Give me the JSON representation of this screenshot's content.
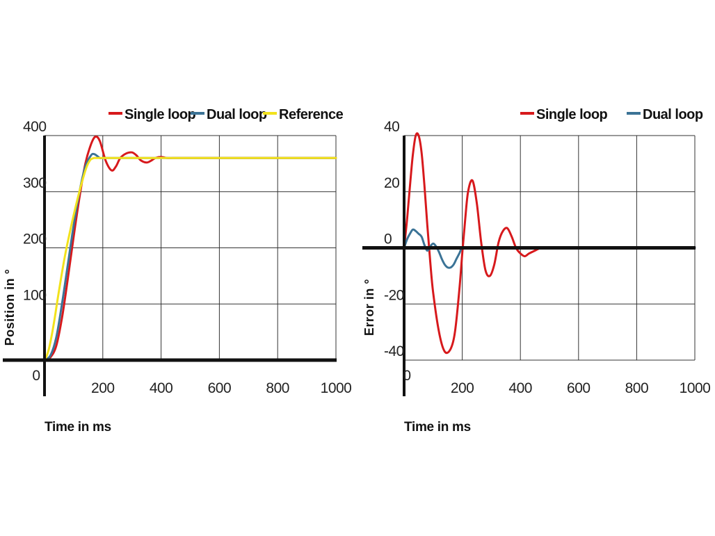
{
  "colors": {
    "single_loop": "#d7191c",
    "dual_loop": "#3b7396",
    "reference": "#f2e21c",
    "grid": "#333333",
    "axis": "#111111"
  },
  "chart_data": [
    {
      "type": "line",
      "title": "",
      "xlabel": "Time in ms",
      "ylabel": "Position in °",
      "xlim": [
        0,
        1000
      ],
      "ylim": [
        0,
        400
      ],
      "xticks": [
        200,
        400,
        600,
        800,
        1000
      ],
      "yticks": [
        100,
        200,
        300,
        400
      ],
      "origin_label": "0",
      "grid": true,
      "legend": "top-right",
      "series": [
        {
          "name": "Single loop",
          "color": "#d7191c",
          "x": [
            0,
            20,
            40,
            60,
            80,
            100,
            120,
            140,
            160,
            175,
            190,
            210,
            230,
            245,
            260,
            280,
            300,
            315,
            330,
            350,
            365,
            380,
            400,
            420,
            440,
            470,
            500,
            600,
            800,
            1000
          ],
          "y": [
            0,
            5,
            25,
            75,
            145,
            220,
            290,
            350,
            385,
            398,
            390,
            355,
            338,
            345,
            360,
            368,
            370,
            365,
            356,
            352,
            355,
            360,
            362,
            360,
            360,
            360,
            360,
            360,
            360,
            360
          ]
        },
        {
          "name": "Dual loop",
          "color": "#3b7396",
          "x": [
            0,
            20,
            40,
            60,
            80,
            100,
            120,
            140,
            160,
            170,
            180,
            190,
            200,
            220,
            250,
            300,
            400,
            600,
            800,
            1000
          ],
          "y": [
            0,
            8,
            40,
            100,
            170,
            240,
            300,
            345,
            365,
            367,
            364,
            360,
            360,
            360,
            360,
            360,
            360,
            360,
            360,
            360
          ]
        },
        {
          "name": "Reference",
          "color": "#f2e21c",
          "x": [
            0,
            5,
            15,
            25,
            35,
            50,
            70,
            90,
            110,
            130,
            145,
            155,
            160,
            170,
            180,
            200,
            300,
            500,
            700,
            1000
          ],
          "y": [
            0,
            4,
            20,
            45,
            75,
            125,
            185,
            235,
            280,
            320,
            345,
            355,
            358,
            360,
            360,
            360,
            360,
            360,
            360,
            360
          ]
        }
      ]
    },
    {
      "type": "line",
      "title": "",
      "xlabel": "Time in ms",
      "ylabel": "Error in °",
      "xlim": [
        0,
        1000
      ],
      "ylim": [
        -40,
        40
      ],
      "xticks": [
        200,
        400,
        600,
        800,
        1000
      ],
      "yticks": [
        40,
        20,
        0,
        -20,
        -40
      ],
      "origin_label": "0",
      "grid": true,
      "legend": "top-right",
      "series": [
        {
          "name": "Single loop",
          "color": "#d7191c",
          "x": [
            0,
            10,
            20,
            30,
            40,
            50,
            60,
            70,
            80,
            90,
            100,
            120,
            140,
            160,
            175,
            190,
            200,
            210,
            220,
            235,
            250,
            265,
            280,
            295,
            310,
            325,
            340,
            355,
            370,
            385,
            400,
            415,
            430,
            450,
            470,
            490,
            500,
            600,
            800,
            1000
          ],
          "y": [
            0,
            10,
            22,
            33,
            40,
            40,
            34,
            22,
            8,
            -5,
            -16,
            -30,
            -37,
            -36,
            -30,
            -15,
            -2,
            10,
            20,
            24,
            16,
            2,
            -8,
            -10,
            -6,
            2,
            6,
            7,
            4,
            0,
            -2,
            -3,
            -2,
            -1,
            0,
            0,
            0,
            0,
            0,
            0
          ]
        },
        {
          "name": "Dual loop",
          "color": "#3b7396",
          "x": [
            0,
            10,
            20,
            30,
            40,
            50,
            60,
            70,
            80,
            90,
            100,
            110,
            120,
            130,
            140,
            150,
            160,
            170,
            180,
            190,
            200,
            220,
            250,
            300,
            400,
            600,
            800,
            1000
          ],
          "y": [
            0,
            3,
            5,
            6.5,
            6,
            5,
            4,
            1,
            -1,
            0.5,
            1.5,
            0.5,
            -1.5,
            -4,
            -6,
            -7,
            -7,
            -6,
            -4,
            -2,
            0,
            0,
            0,
            0,
            0,
            0,
            0,
            0
          ]
        }
      ]
    }
  ]
}
